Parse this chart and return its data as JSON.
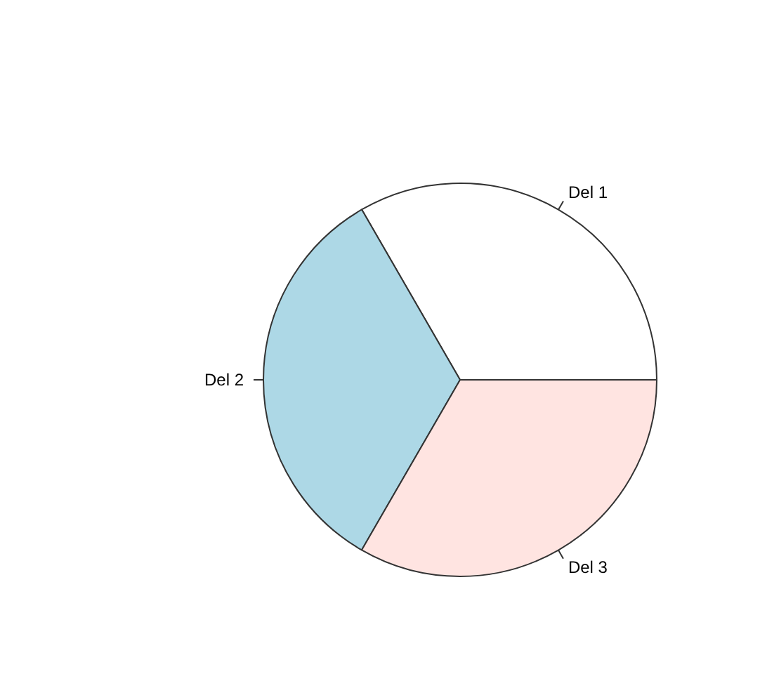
{
  "chart_data": {
    "type": "pie",
    "categories": [
      "Del 1",
      "Del 2",
      "Del 3"
    ],
    "values": [
      33.33,
      33.33,
      33.34
    ],
    "colors": [
      "#ffffff",
      "#add8e6",
      "#ffe4e1"
    ]
  }
}
